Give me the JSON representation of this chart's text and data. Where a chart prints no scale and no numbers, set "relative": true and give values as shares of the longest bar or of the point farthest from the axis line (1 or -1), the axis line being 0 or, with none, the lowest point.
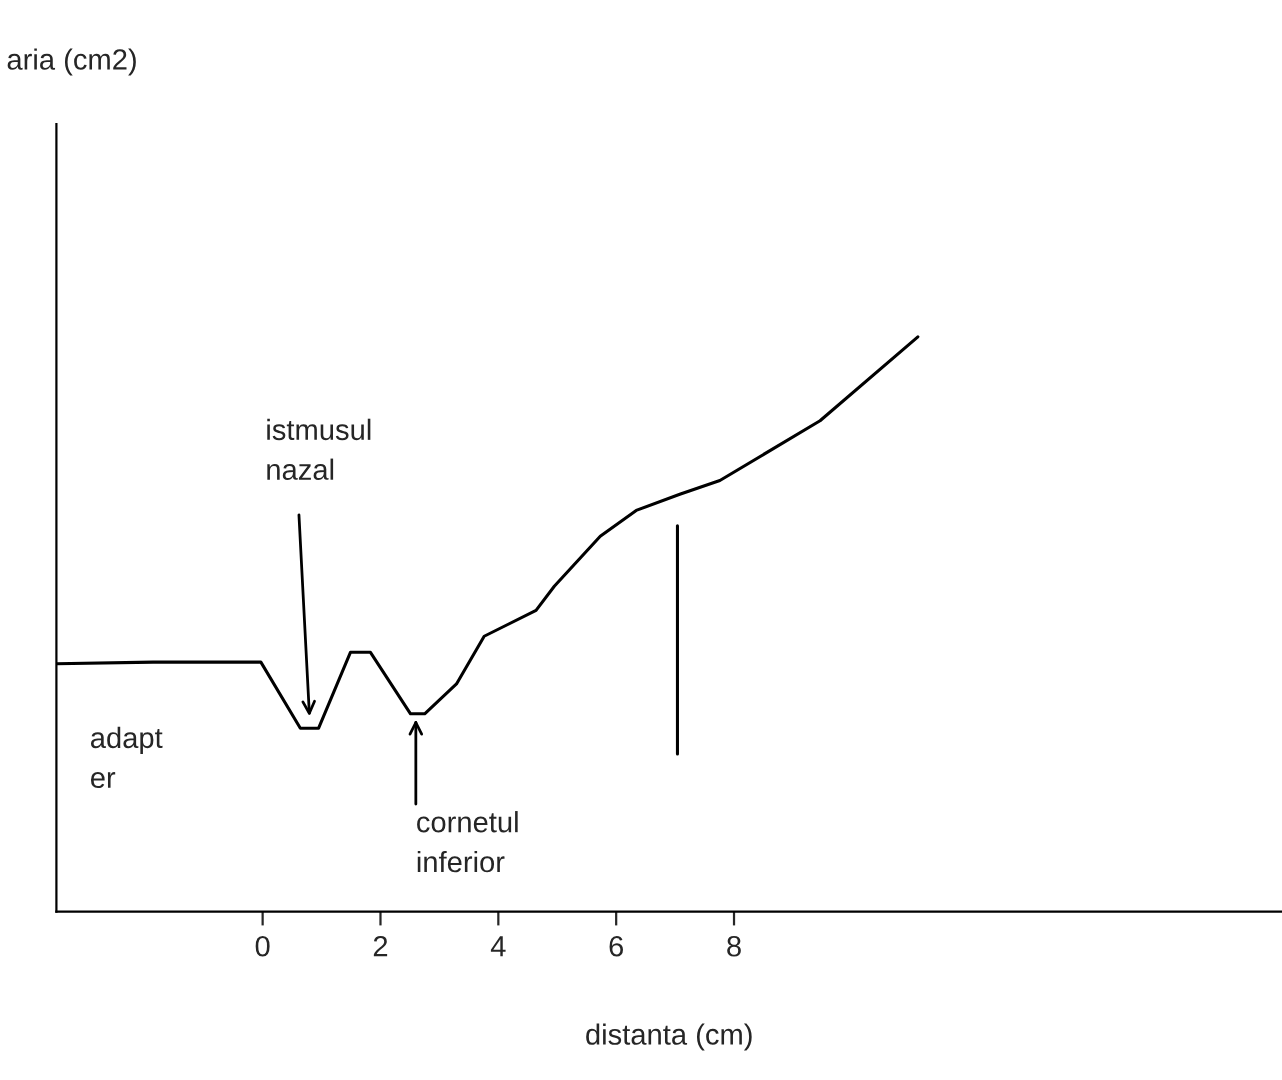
{
  "chart_data": {
    "type": "line",
    "relative": true,
    "xlabel": "distanta (cm)",
    "xlim": [
      -3.5,
      17.3
    ],
    "xticks": [
      0,
      2,
      4,
      6,
      8
    ],
    "grid": false,
    "marker": "none",
    "line_style": "solid",
    "tick_labels": "x",
    "series": [
      {
        "color": "#000000",
        "x": [
          -3.5,
          -1.86,
          -0.03,
          0.64,
          0.95,
          1.49,
          1.83,
          2.51,
          2.75,
          3.29,
          3.76,
          4.64,
          4.95,
          5.73,
          6.34,
          7.08,
          7.76,
          9.46,
          11.12
        ],
        "values": [
          0.431,
          0.434,
          0.434,
          0.319,
          0.319,
          0.451,
          0.451,
          0.344,
          0.344,
          0.396,
          0.479,
          0.524,
          0.566,
          0.653,
          0.698,
          0.726,
          0.75,
          0.854,
          1.0
        ]
      }
    ],
    "ref_lines": [
      {
        "axis": "x",
        "value": 7.04,
        "color": "#000000"
      }
    ],
    "annotations": [
      "aria (cm2)",
      {
        "text": "istmusul\nnazal",
        "x": 0.8,
        "y": 0.33
      },
      {
        "text": "cornetul\ninferior",
        "x": 2.6,
        "y": 0.344
      },
      "adapt\ner"
    ]
  }
}
